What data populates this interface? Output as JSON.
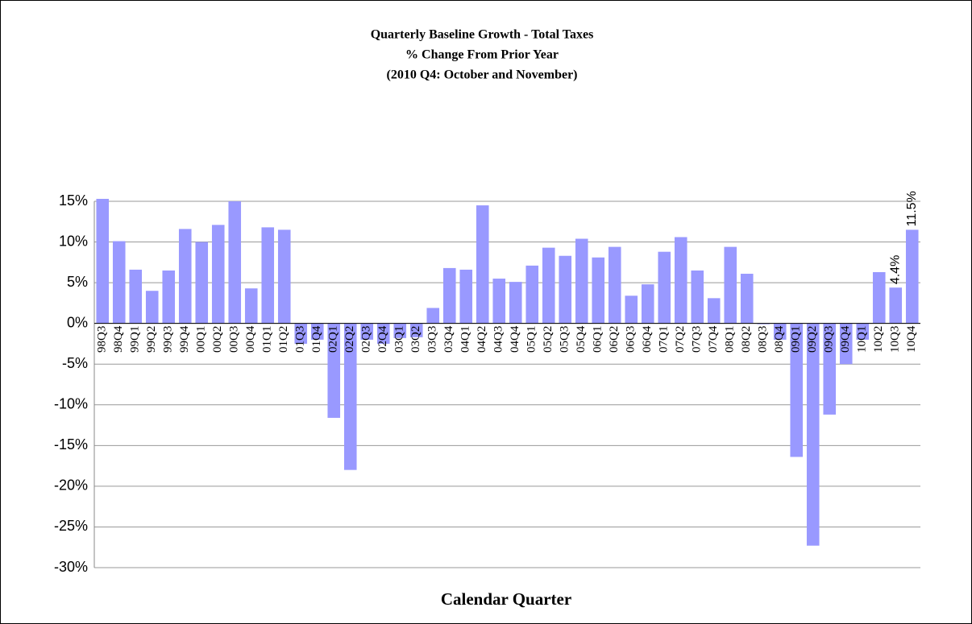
{
  "chart_data": {
    "type": "bar",
    "title": [
      "Quarterly Baseline Growth - Total Taxes",
      "% Change From Prior Year",
      "(2010 Q4: October and November)"
    ],
    "x_label": "Calendar Quarter",
    "categories": [
      "98Q3",
      "98Q4",
      "99Q1",
      "99Q2",
      "99Q3",
      "99Q4",
      "00Q1",
      "00Q2",
      "00Q3",
      "00Q4",
      "01Q1",
      "01Q2",
      "01Q3",
      "01Q4",
      "02Q1",
      "02Q2",
      "02Q3",
      "02Q4",
      "03Q1",
      "03Q2",
      "03Q3",
      "03Q4",
      "04Q1",
      "04Q2",
      "04Q3",
      "04Q4",
      "05Q1",
      "05Q2",
      "05Q3",
      "05Q4",
      "06Q1",
      "06Q2",
      "06Q3",
      "06Q4",
      "07Q1",
      "07Q2",
      "07Q3",
      "07Q4",
      "08Q1",
      "08Q2",
      "08Q3",
      "08Q4",
      "09Q1",
      "09Q2",
      "09Q3",
      "09Q4",
      "10Q1",
      "10Q2",
      "10Q3",
      "10Q4"
    ],
    "values": [
      15.3,
      10.1,
      6.6,
      4.0,
      6.5,
      11.6,
      10.0,
      12.1,
      15.0,
      4.3,
      11.8,
      11.5,
      -2.5,
      -2.0,
      -11.6,
      -18.0,
      -2.0,
      -2.5,
      -1.8,
      -1.7,
      1.9,
      6.8,
      6.6,
      14.5,
      5.5,
      5.1,
      7.1,
      9.3,
      8.3,
      10.4,
      8.1,
      9.4,
      3.4,
      4.8,
      8.8,
      10.6,
      6.5,
      3.1,
      9.4,
      6.1,
      -0.1,
      -2.0,
      -16.4,
      -27.3,
      -11.2,
      -5.0,
      -2.0,
      6.3,
      4.4,
      11.5
    ],
    "value_labels": [
      null,
      null,
      null,
      null,
      null,
      null,
      null,
      null,
      null,
      null,
      null,
      null,
      null,
      null,
      null,
      null,
      null,
      null,
      null,
      null,
      null,
      null,
      null,
      null,
      null,
      null,
      null,
      null,
      null,
      null,
      null,
      null,
      null,
      null,
      null,
      null,
      null,
      null,
      null,
      null,
      null,
      null,
      null,
      null,
      null,
      null,
      null,
      null,
      "4.4%",
      "11.5%"
    ],
    "color": "#9999ff",
    "ylim": [
      -30,
      15
    ],
    "yticks": [
      {
        "value": -30,
        "label": "-30%"
      },
      {
        "value": -25,
        "label": "-25%"
      },
      {
        "value": -20,
        "label": "-20%"
      },
      {
        "value": -15,
        "label": "-15%"
      },
      {
        "value": -10,
        "label": "-10%"
      },
      {
        "value": -5,
        "label": "-5%"
      },
      {
        "value": 0,
        "label": "0%"
      },
      {
        "value": 5,
        "label": "5%"
      },
      {
        "value": 10,
        "label": "10%"
      },
      {
        "value": 15,
        "label": "15%"
      }
    ],
    "grid": true
  }
}
